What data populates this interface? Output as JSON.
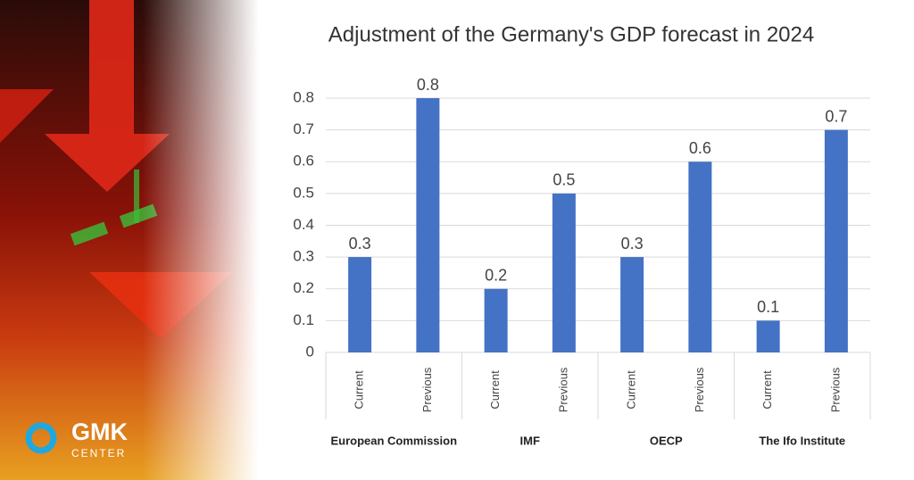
{
  "chart_data": {
    "type": "bar",
    "title": "Adjustment of the Germany's GDP forecast in 2024",
    "categories": [
      "Current",
      "Previous",
      "Current",
      "Previous",
      "Current",
      "Previous",
      "Current",
      "Previous"
    ],
    "groups": [
      "European Commission",
      "IMF",
      "OECP",
      "The Ifo Institute"
    ],
    "values": [
      0.3,
      0.8,
      0.2,
      0.5,
      0.3,
      0.6,
      0.1,
      0.7
    ],
    "color": "#4472c4",
    "ylim": [
      0,
      0.8
    ],
    "yticks": [
      0,
      0.1,
      0.2,
      0.3,
      0.4,
      0.5,
      0.6,
      0.7,
      0.8
    ],
    "grid": true
  },
  "logo": {
    "name": "GMK",
    "sub": "CENTER"
  }
}
